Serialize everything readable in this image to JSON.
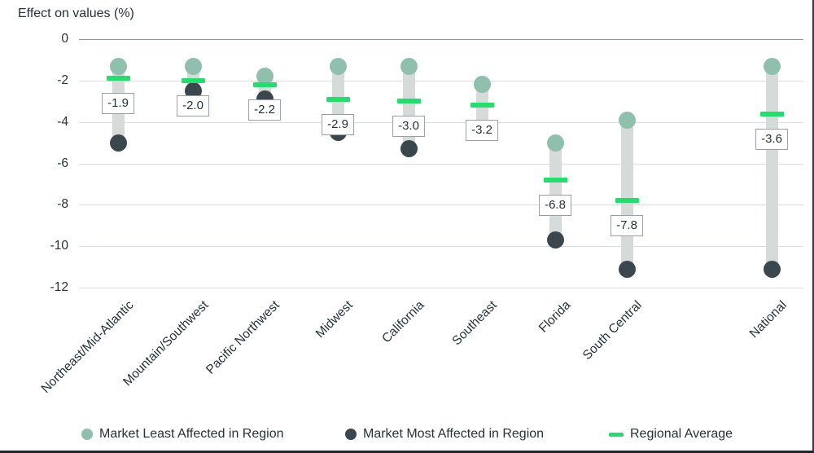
{
  "title": "Effect on values (%)",
  "legend": [
    {
      "label": "Market Least Affected in Region",
      "marker": "dot",
      "color": "#8fc0ae"
    },
    {
      "label": "Market Most Affected in Region",
      "marker": "dot",
      "color": "#3a474d"
    },
    {
      "label": "Regional Average",
      "marker": "dash",
      "color": "#21de6d"
    }
  ],
  "colors": {
    "least_dot": "#8fc0ae",
    "most_dot": "#3a474d",
    "average_dash": "#21de6d",
    "range_bar": "#d6dbda",
    "gridline": "#d9dde0",
    "zero_line": "#8e999e",
    "text": "#263238",
    "value_box_border": "#98a0a5"
  },
  "chart_data": {
    "type": "dumbbell",
    "title": "Effect on values (%)",
    "ylabel": "Effect on values (%)",
    "ylim": [
      -12,
      0
    ],
    "yticks": [
      0,
      -2,
      -4,
      -6,
      -8,
      -10,
      -12
    ],
    "grid": true,
    "legend_position": "bottom",
    "categories": [
      "Northeast/Mid-Atlantic",
      "Mountain/Southwest",
      "Pacific Northwest",
      "Midwest",
      "California",
      "Southeast",
      "Florida",
      "South Central",
      "National"
    ],
    "series": [
      {
        "name": "Market Least Affected in Region",
        "values": [
          -1.3,
          -1.3,
          -1.8,
          -1.3,
          -1.3,
          -2.2,
          -5.0,
          -3.9,
          -1.3
        ]
      },
      {
        "name": "Market Most Affected in Region",
        "values": [
          -5.0,
          -2.5,
          -2.9,
          -4.5,
          -5.3,
          -4.3,
          -9.7,
          -11.1,
          -11.1
        ]
      },
      {
        "name": "Regional Average",
        "values": [
          -1.9,
          -2.0,
          -2.2,
          -2.9,
          -3.0,
          -3.2,
          -6.8,
          -7.8,
          -3.6
        ]
      }
    ],
    "value_labels": [
      "-1.9",
      "-2.0",
      "-2.2",
      "-2.9",
      "-3.0",
      "-3.2",
      "-6.8",
      "-7.8",
      "-3.6"
    ]
  }
}
